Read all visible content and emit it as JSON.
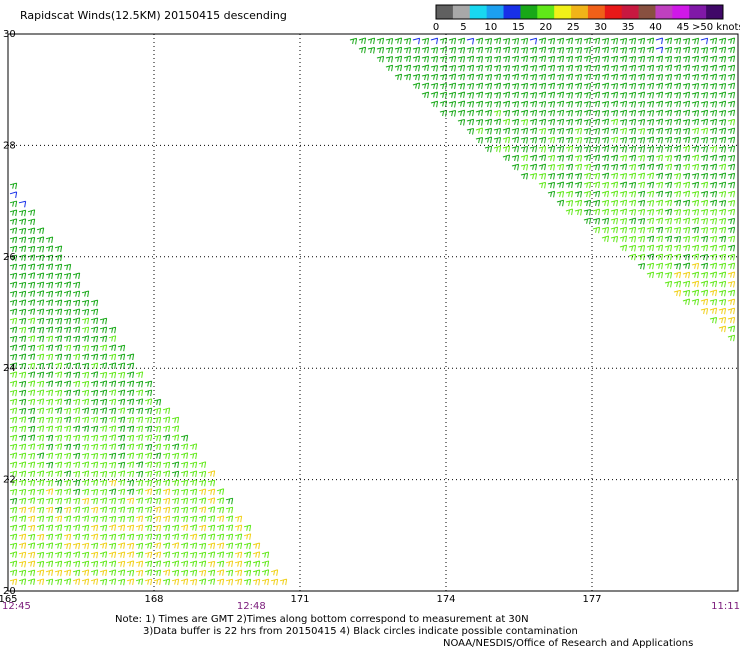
{
  "title": "Rapidscat Winds(12.5KM) 20150415 descending",
  "colorbar": {
    "labels": [
      "0",
      "5",
      "10",
      "15",
      "20",
      "25",
      "30",
      "35",
      "40",
      "45",
      ">50 knots"
    ],
    "colors": [
      "#606060",
      "#a8a8a8",
      "#18d8f0",
      "#1ca0f0",
      "#1830e8",
      "#18a818",
      "#60e818",
      "#f0f018",
      "#f0b418",
      "#f06018",
      "#e81818",
      "#c81840",
      "#885040",
      "#c040c0",
      "#d018e8",
      "#8018a8",
      "#400868"
    ]
  },
  "chart_data": {
    "type": "wind-barb map",
    "x_axis": {
      "ticks": [
        "165",
        "168",
        "171",
        "174",
        "177"
      ],
      "range": [
        165,
        180
      ]
    },
    "y_axis": {
      "ticks": [
        "30",
        "28",
        "26",
        "24",
        "22",
        "20"
      ],
      "range": [
        20,
        30
      ]
    },
    "time_labels": [
      {
        "text": "12:45",
        "lon": 165
      },
      {
        "text": "12:48",
        "lon": 170
      },
      {
        "text": "11:11",
        "lon": 180
      }
    ],
    "swaths": [
      {
        "name": "swath-west",
        "corners": [
          [
            165,
            27.4
          ],
          [
            165,
            20
          ],
          [
            170.8,
            20
          ]
        ],
        "speed_knots_typical": [
          10,
          25
        ]
      },
      {
        "name": "swath-east",
        "corners": [
          [
            171.8,
            30
          ],
          [
            180,
            30
          ],
          [
            180,
            24.4
          ]
        ],
        "speed_knots_typical": [
          10,
          27
        ]
      }
    ],
    "wind_direction": "from the east-northeast (easterly trades)",
    "grid": "dotted"
  },
  "notes": {
    "line1": "Note: 1) Times are GMT 2)Times along bottom correspond to measurement at 30N",
    "line2": "3)Data buffer is 22 hrs from 20150415 4) Black circles indicate possible contamination",
    "credit": "NOAA/NESDIS/Office of Research and Applications"
  }
}
